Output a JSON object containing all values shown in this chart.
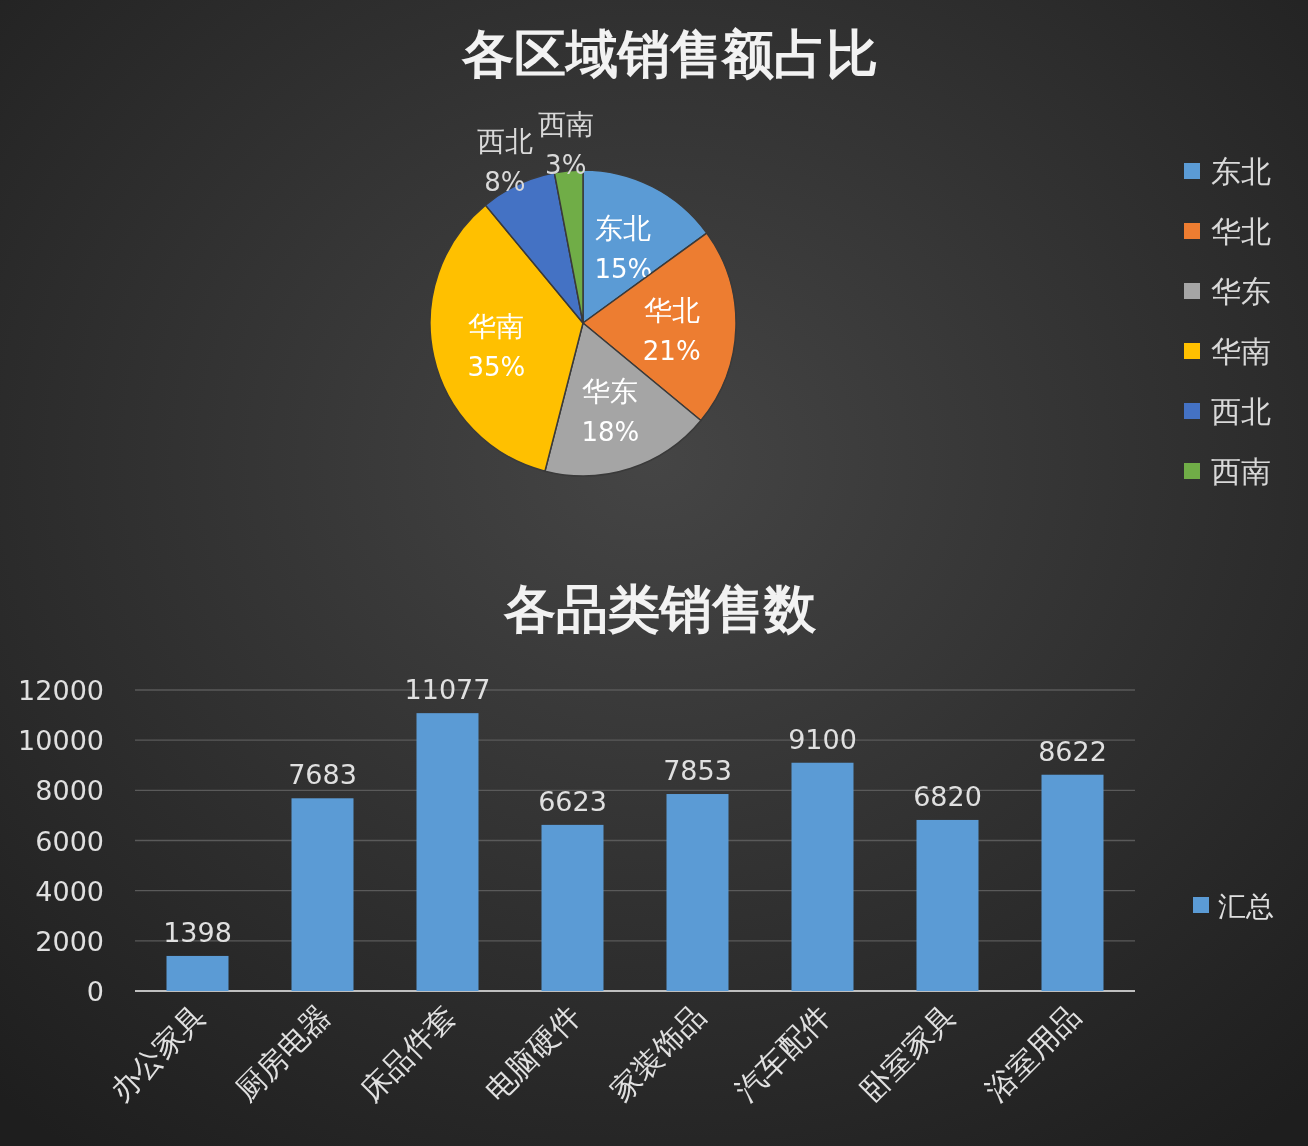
{
  "chart_data": [
    {
      "type": "pie",
      "title": "各区域销售额占比",
      "categories": [
        "东北",
        "华北",
        "华东",
        "华南",
        "西北",
        "西南"
      ],
      "values": [
        15,
        21,
        18,
        35,
        8,
        3
      ],
      "colors": [
        "#5b9bd5",
        "#ed7d31",
        "#a5a5a5",
        "#ffc000",
        "#4472c4",
        "#70ad47"
      ],
      "value_labels": [
        "15%",
        "21%",
        "18%",
        "35%",
        "8%",
        "3%"
      ],
      "legend": "right"
    },
    {
      "type": "bar",
      "title": "各品类销售数",
      "categories": [
        "办公家具",
        "厨房电器",
        "床品件套",
        "电脑硬件",
        "家装饰品",
        "汽车配件",
        "卧室家具",
        "浴室用品"
      ],
      "series": [
        {
          "name": "汇总",
          "color": "#5b9bd5",
          "values": [
            1398,
            7683,
            11077,
            6623,
            7853,
            9100,
            6820,
            8622
          ]
        }
      ],
      "ylim": [
        0,
        12000
      ],
      "yticks": [
        0,
        2000,
        4000,
        6000,
        8000,
        10000,
        12000
      ],
      "grid": "y",
      "data_labels": true,
      "legend": "right"
    }
  ]
}
